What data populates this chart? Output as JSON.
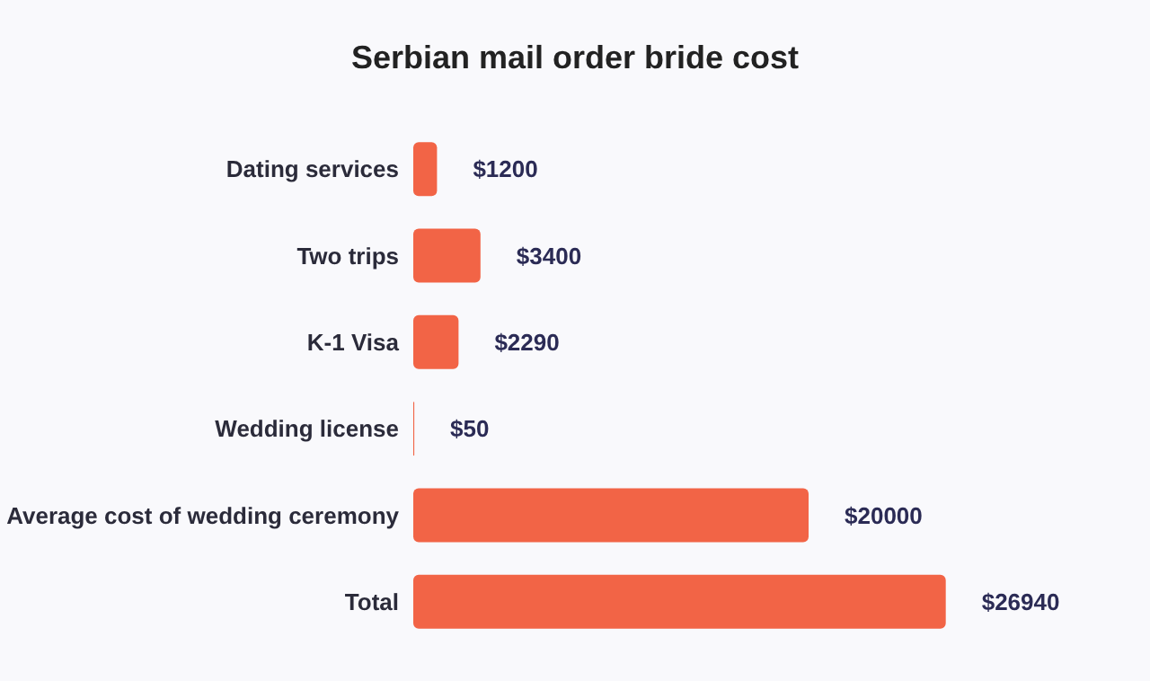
{
  "chart_data": {
    "type": "bar",
    "title": "Serbian mail order bride cost",
    "orientation": "horizontal",
    "categories": [
      "Dating services",
      "Two trips",
      "K-1 Visa",
      "Wedding license",
      "Average cost of wedding ceremony",
      "Total"
    ],
    "values": [
      1200,
      3400,
      2290,
      50,
      20000,
      26940
    ],
    "value_labels": [
      "$1200",
      "$3400",
      "$2290",
      "$50",
      "$20000",
      "$26940"
    ],
    "color": "#f26446"
  }
}
